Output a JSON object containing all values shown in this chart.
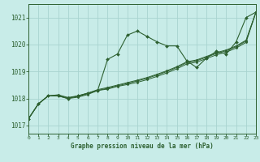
{
  "title": "Graphe pression niveau de la mer (hPa)",
  "bg_color": "#c8ece8",
  "grid_color": "#a8d4d0",
  "line_color": "#2d6030",
  "xlim": [
    0,
    23
  ],
  "ylim": [
    1016.7,
    1021.5
  ],
  "yticks": [
    1017,
    1018,
    1019,
    1020,
    1021
  ],
  "xticks": [
    0,
    1,
    2,
    3,
    4,
    5,
    6,
    7,
    8,
    9,
    10,
    11,
    12,
    13,
    14,
    15,
    16,
    17,
    18,
    19,
    20,
    21,
    22,
    23
  ],
  "series": [
    [
      1017.25,
      1017.8,
      1018.1,
      1018.1,
      1018.0,
      1018.1,
      1018.2,
      1018.3,
      1019.45,
      1019.65,
      1020.35,
      1020.5,
      1020.3,
      1020.1,
      1019.95,
      1019.95,
      1019.4,
      1019.15,
      1019.5,
      1019.75,
      1019.65,
      1020.1,
      1021.0,
      1021.2
    ],
    [
      1017.25,
      1017.8,
      1018.1,
      1018.1,
      1018.0,
      1018.05,
      1018.15,
      1018.3,
      1018.35,
      1018.45,
      1018.52,
      1018.6,
      1018.7,
      1018.82,
      1018.95,
      1019.1,
      1019.28,
      1019.35,
      1019.48,
      1019.62,
      1019.72,
      1019.87,
      1020.08,
      1021.2
    ],
    [
      1017.25,
      1017.8,
      1018.1,
      1018.12,
      1018.02,
      1018.08,
      1018.18,
      1018.3,
      1018.38,
      1018.47,
      1018.56,
      1018.65,
      1018.75,
      1018.87,
      1019.0,
      1019.15,
      1019.33,
      1019.4,
      1019.53,
      1019.67,
      1019.77,
      1019.92,
      1020.13,
      1021.2
    ],
    [
      1017.25,
      1017.8,
      1018.1,
      1018.14,
      1018.04,
      1018.1,
      1018.2,
      1018.33,
      1018.41,
      1018.5,
      1018.59,
      1018.68,
      1018.78,
      1018.9,
      1019.03,
      1019.18,
      1019.36,
      1019.43,
      1019.56,
      1019.7,
      1019.8,
      1019.95,
      1020.16,
      1021.2
    ]
  ]
}
